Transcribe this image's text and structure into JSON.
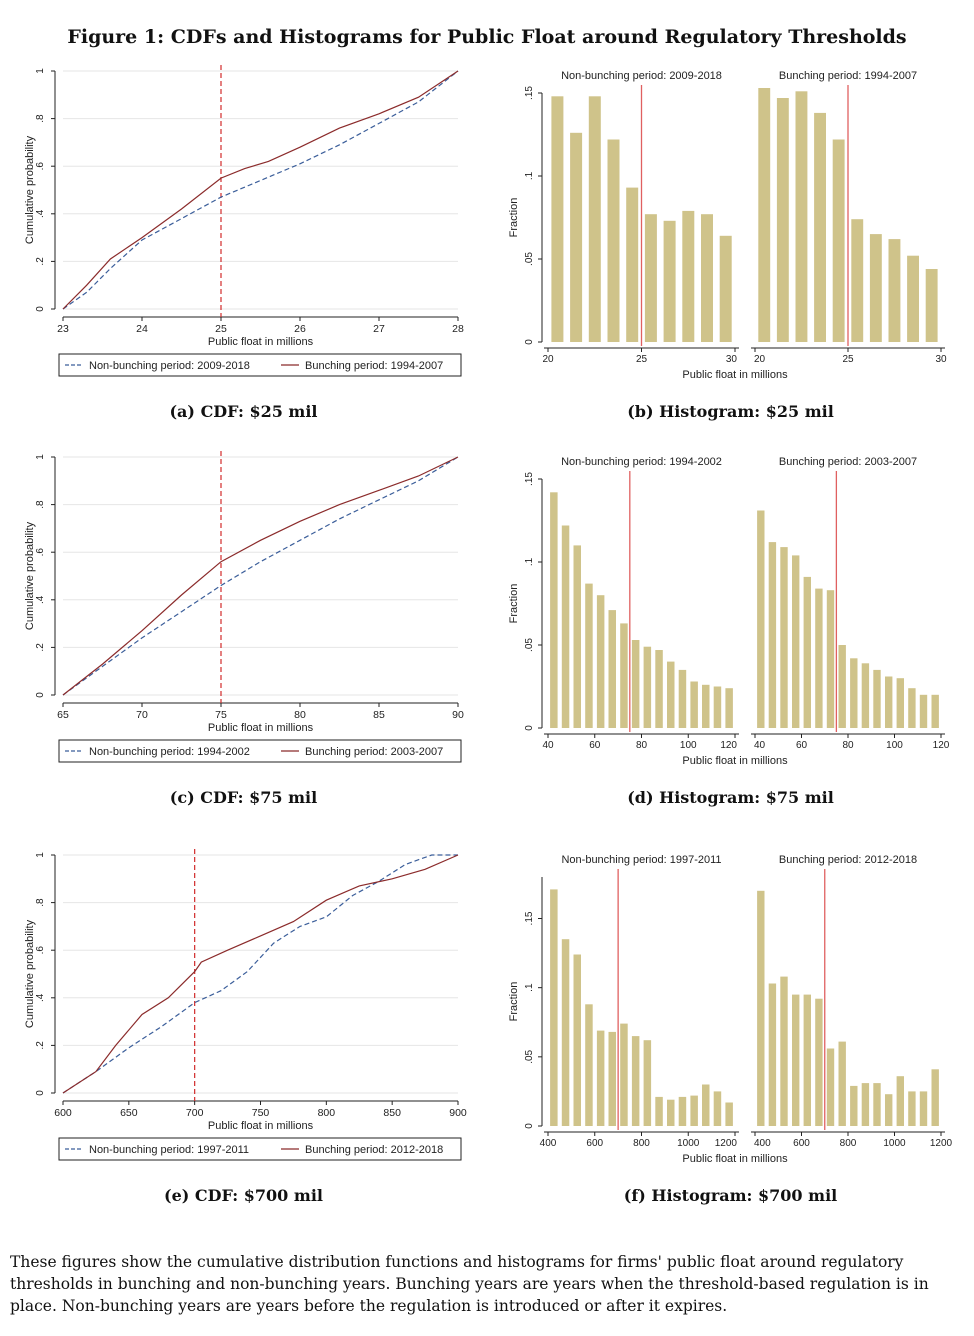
{
  "figure_title": "Figure 1: CDFs and Histograms for Public Float around Regulatory Thresholds",
  "note": "These figures show the cumulative distribution functions and histograms for firms' public float around regulatory thresholds in bunching and non-bunching years. Bunching years are years when the threshold-based regulation is in place. Non-bunching years are years before the regulation is introduced or after it expires.",
  "colors": {
    "nonbunching": "#3b5e9a",
    "bunching": "#8b2b2b",
    "threshold": "#d12b2b",
    "bar": "#cfc38a",
    "hist_threshold": "#e06060"
  },
  "chart_data": [
    {
      "type": "line",
      "caption": "(a) CDF: $25 mil",
      "xlabel": "Public float in millions",
      "ylabel": "Cumulative probability",
      "xlim": [
        23,
        28
      ],
      "ylim": [
        0,
        1
      ],
      "xticks": [
        23,
        24,
        25,
        26,
        27,
        28
      ],
      "yticks": [
        0,
        0.2,
        0.4,
        0.6,
        0.8,
        1
      ],
      "yticklabels": [
        "0",
        ".2",
        ".4",
        ".6",
        ".8",
        "1"
      ],
      "threshold": 25,
      "legend_position": "bottom",
      "series": [
        {
          "name": "Non-bunching period: 2009-2018",
          "style": "dashed",
          "x": [
            23,
            23.3,
            23.6,
            24,
            24.5,
            25,
            25.5,
            26,
            26.5,
            27,
            27.5,
            28
          ],
          "y": [
            0,
            0.07,
            0.17,
            0.29,
            0.38,
            0.47,
            0.54,
            0.61,
            0.69,
            0.78,
            0.87,
            1.0
          ]
        },
        {
          "name": "Bunching period: 1994-2007",
          "style": "solid",
          "x": [
            23,
            23.3,
            23.6,
            24,
            24.5,
            25,
            25.3,
            25.6,
            26,
            26.5,
            27,
            27.5,
            28
          ],
          "y": [
            0,
            0.1,
            0.21,
            0.3,
            0.42,
            0.55,
            0.59,
            0.62,
            0.68,
            0.76,
            0.82,
            0.89,
            1.0
          ]
        }
      ]
    },
    {
      "type": "bar",
      "caption": "(b) Histogram: $25 mil",
      "xlabel": "Public float in millions",
      "ylabel": "Fraction",
      "ylim": [
        0,
        0.15
      ],
      "yticks": [
        0,
        0.05,
        0.1,
        0.15
      ],
      "yticklabels": [
        "0",
        ".05",
        ".1",
        ".15"
      ],
      "panels": [
        {
          "title": "Non-bunching period: 2009-2018",
          "xlim": [
            20,
            30
          ],
          "xticks": [
            20,
            25,
            30
          ],
          "threshold": 25,
          "values": [
            0.148,
            0.126,
            0.148,
            0.122,
            0.093,
            0.077,
            0.073,
            0.079,
            0.077,
            0.064
          ]
        },
        {
          "title": "Bunching period: 1994-2007",
          "xlim": [
            20,
            30
          ],
          "xticks": [
            20,
            25,
            30
          ],
          "threshold": 25,
          "values": [
            0.153,
            0.147,
            0.151,
            0.138,
            0.122,
            0.074,
            0.065,
            0.062,
            0.052,
            0.044
          ]
        }
      ]
    },
    {
      "type": "line",
      "caption": "(c) CDF: $75 mil",
      "xlabel": "Public float in millions",
      "ylabel": "Cumulative probability",
      "xlim": [
        65,
        90
      ],
      "ylim": [
        0,
        1
      ],
      "xticks": [
        65,
        70,
        75,
        80,
        85,
        90
      ],
      "yticks": [
        0,
        0.2,
        0.4,
        0.6,
        0.8,
        1
      ],
      "yticklabels": [
        "0",
        ".2",
        ".4",
        ".6",
        ".8",
        "1"
      ],
      "threshold": 75,
      "legend_position": "bottom",
      "series": [
        {
          "name": "Non-bunching period: 1994-2002",
          "style": "dashed",
          "x": [
            65,
            67.5,
            70,
            72.5,
            75,
            77.5,
            80,
            82.5,
            85,
            87.5,
            90
          ],
          "y": [
            0,
            0.12,
            0.24,
            0.35,
            0.46,
            0.56,
            0.65,
            0.74,
            0.82,
            0.9,
            1.0
          ]
        },
        {
          "name": "Bunching period: 2003-2007",
          "style": "solid",
          "x": [
            65,
            67.5,
            70,
            72.5,
            75,
            77.5,
            80,
            82.5,
            85,
            87.5,
            90
          ],
          "y": [
            0,
            0.13,
            0.27,
            0.42,
            0.56,
            0.65,
            0.73,
            0.8,
            0.86,
            0.92,
            1.0
          ]
        }
      ]
    },
    {
      "type": "bar",
      "caption": "(d) Histogram: $75 mil",
      "xlabel": "Public float in millions",
      "ylabel": "Fraction",
      "ylim": [
        0,
        0.15
      ],
      "yticks": [
        0,
        0.05,
        0.1,
        0.15
      ],
      "yticklabels": [
        "0",
        ".05",
        ".1",
        ".15"
      ],
      "panels": [
        {
          "title": "Non-bunching period: 1994-2002",
          "xlim": [
            40,
            120
          ],
          "xticks": [
            40,
            60,
            80,
            100,
            120
          ],
          "threshold": 75,
          "values": [
            0.142,
            0.122,
            0.11,
            0.087,
            0.08,
            0.071,
            0.063,
            0.053,
            0.049,
            0.047,
            0.04,
            0.035,
            0.028,
            0.026,
            0.025,
            0.024
          ]
        },
        {
          "title": "Bunching period: 2003-2007",
          "xlim": [
            40,
            120
          ],
          "xticks": [
            40,
            60,
            80,
            100,
            120
          ],
          "threshold": 75,
          "values": [
            0.131,
            0.112,
            0.109,
            0.104,
            0.091,
            0.084,
            0.083,
            0.05,
            0.042,
            0.039,
            0.035,
            0.031,
            0.03,
            0.024,
            0.02,
            0.02
          ]
        }
      ]
    },
    {
      "type": "line",
      "caption": "(e) CDF: $700 mil",
      "xlabel": "Public float in millions",
      "ylabel": "Cumulative probability",
      "xlim": [
        600,
        900
      ],
      "ylim": [
        0,
        1
      ],
      "xticks": [
        600,
        650,
        700,
        750,
        800,
        850,
        900
      ],
      "yticks": [
        0,
        0.2,
        0.4,
        0.6,
        0.8,
        1
      ],
      "yticklabels": [
        "0",
        ".2",
        ".4",
        ".6",
        ".8",
        "1"
      ],
      "threshold": 700,
      "legend_position": "bottom",
      "series": [
        {
          "name": "Non-bunching period: 1997-2011",
          "style": "dashed",
          "x": [
            600,
            625,
            650,
            675,
            700,
            720,
            740,
            760,
            780,
            800,
            820,
            840,
            860,
            880,
            900
          ],
          "y": [
            0,
            0.09,
            0.19,
            0.28,
            0.38,
            0.43,
            0.51,
            0.63,
            0.7,
            0.74,
            0.83,
            0.89,
            0.96,
            1.0,
            1.0
          ]
        },
        {
          "name": "Bunching period: 2012-2018",
          "style": "solid",
          "x": [
            600,
            625,
            640,
            660,
            680,
            700,
            705,
            725,
            750,
            775,
            800,
            825,
            850,
            875,
            900
          ],
          "y": [
            0,
            0.09,
            0.2,
            0.33,
            0.4,
            0.51,
            0.55,
            0.6,
            0.66,
            0.72,
            0.81,
            0.87,
            0.9,
            0.94,
            1.0
          ]
        }
      ]
    },
    {
      "type": "bar",
      "caption": "(f) Histogram: $700 mil",
      "xlabel": "Public float in millions",
      "ylabel": "Fraction",
      "ylim": [
        0,
        0.18
      ],
      "yticks": [
        0,
        0.05,
        0.1,
        0.15
      ],
      "yticklabels": [
        "0",
        ".05",
        ".1",
        ".15"
      ],
      "panels": [
        {
          "title": "Non-bunching period: 1997-2011",
          "xlim": [
            400,
            1200
          ],
          "xticks": [
            400,
            600,
            800,
            1000,
            1200
          ],
          "threshold": 700,
          "values": [
            0.171,
            0.135,
            0.124,
            0.088,
            0.069,
            0.068,
            0.074,
            0.065,
            0.062,
            0.021,
            0.019,
            0.021,
            0.022,
            0.03,
            0.025,
            0.017
          ]
        },
        {
          "title": "Bunching period: 2012-2018",
          "xlim": [
            400,
            1200
          ],
          "xticks": [
            400,
            600,
            800,
            1000,
            1200
          ],
          "threshold": 700,
          "values": [
            0.17,
            0.103,
            0.108,
            0.095,
            0.095,
            0.092,
            0.056,
            0.061,
            0.029,
            0.031,
            0.031,
            0.023,
            0.036,
            0.025,
            0.025,
            0.041
          ]
        }
      ]
    }
  ]
}
